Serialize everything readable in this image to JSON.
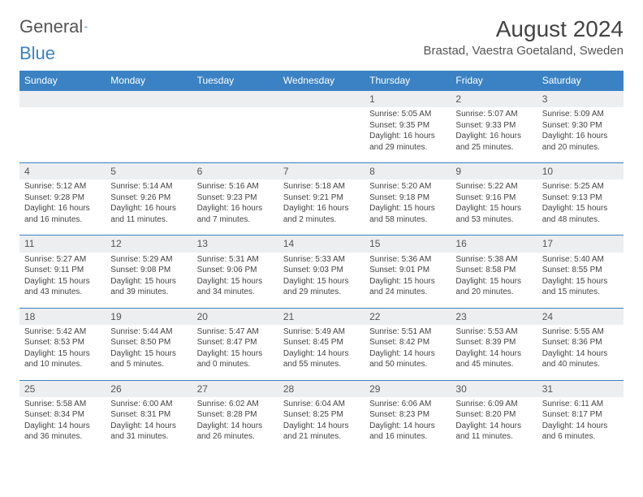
{
  "logo": {
    "word1": "General",
    "word2": "Blue"
  },
  "title": "August 2024",
  "location": "Brastad, Vaestra Goetaland, Sweden",
  "colors": {
    "header_bg": "#3b82c4",
    "header_text": "#ffffff",
    "daynum_bg": "#eceef0",
    "rule": "#3b82c4",
    "text": "#444444",
    "page_bg": "#ffffff"
  },
  "day_headers": [
    "Sunday",
    "Monday",
    "Tuesday",
    "Wednesday",
    "Thursday",
    "Friday",
    "Saturday"
  ],
  "weeks": [
    [
      null,
      null,
      null,
      null,
      {
        "n": "1",
        "sr": "5:05 AM",
        "ss": "9:35 PM",
        "dl": "16 hours and 29 minutes."
      },
      {
        "n": "2",
        "sr": "5:07 AM",
        "ss": "9:33 PM",
        "dl": "16 hours and 25 minutes."
      },
      {
        "n": "3",
        "sr": "5:09 AM",
        "ss": "9:30 PM",
        "dl": "16 hours and 20 minutes."
      }
    ],
    [
      {
        "n": "4",
        "sr": "5:12 AM",
        "ss": "9:28 PM",
        "dl": "16 hours and 16 minutes."
      },
      {
        "n": "5",
        "sr": "5:14 AM",
        "ss": "9:26 PM",
        "dl": "16 hours and 11 minutes."
      },
      {
        "n": "6",
        "sr": "5:16 AM",
        "ss": "9:23 PM",
        "dl": "16 hours and 7 minutes."
      },
      {
        "n": "7",
        "sr": "5:18 AM",
        "ss": "9:21 PM",
        "dl": "16 hours and 2 minutes."
      },
      {
        "n": "8",
        "sr": "5:20 AM",
        "ss": "9:18 PM",
        "dl": "15 hours and 58 minutes."
      },
      {
        "n": "9",
        "sr": "5:22 AM",
        "ss": "9:16 PM",
        "dl": "15 hours and 53 minutes."
      },
      {
        "n": "10",
        "sr": "5:25 AM",
        "ss": "9:13 PM",
        "dl": "15 hours and 48 minutes."
      }
    ],
    [
      {
        "n": "11",
        "sr": "5:27 AM",
        "ss": "9:11 PM",
        "dl": "15 hours and 43 minutes."
      },
      {
        "n": "12",
        "sr": "5:29 AM",
        "ss": "9:08 PM",
        "dl": "15 hours and 39 minutes."
      },
      {
        "n": "13",
        "sr": "5:31 AM",
        "ss": "9:06 PM",
        "dl": "15 hours and 34 minutes."
      },
      {
        "n": "14",
        "sr": "5:33 AM",
        "ss": "9:03 PM",
        "dl": "15 hours and 29 minutes."
      },
      {
        "n": "15",
        "sr": "5:36 AM",
        "ss": "9:01 PM",
        "dl": "15 hours and 24 minutes."
      },
      {
        "n": "16",
        "sr": "5:38 AM",
        "ss": "8:58 PM",
        "dl": "15 hours and 20 minutes."
      },
      {
        "n": "17",
        "sr": "5:40 AM",
        "ss": "8:55 PM",
        "dl": "15 hours and 15 minutes."
      }
    ],
    [
      {
        "n": "18",
        "sr": "5:42 AM",
        "ss": "8:53 PM",
        "dl": "15 hours and 10 minutes."
      },
      {
        "n": "19",
        "sr": "5:44 AM",
        "ss": "8:50 PM",
        "dl": "15 hours and 5 minutes."
      },
      {
        "n": "20",
        "sr": "5:47 AM",
        "ss": "8:47 PM",
        "dl": "15 hours and 0 minutes."
      },
      {
        "n": "21",
        "sr": "5:49 AM",
        "ss": "8:45 PM",
        "dl": "14 hours and 55 minutes."
      },
      {
        "n": "22",
        "sr": "5:51 AM",
        "ss": "8:42 PM",
        "dl": "14 hours and 50 minutes."
      },
      {
        "n": "23",
        "sr": "5:53 AM",
        "ss": "8:39 PM",
        "dl": "14 hours and 45 minutes."
      },
      {
        "n": "24",
        "sr": "5:55 AM",
        "ss": "8:36 PM",
        "dl": "14 hours and 40 minutes."
      }
    ],
    [
      {
        "n": "25",
        "sr": "5:58 AM",
        "ss": "8:34 PM",
        "dl": "14 hours and 36 minutes."
      },
      {
        "n": "26",
        "sr": "6:00 AM",
        "ss": "8:31 PM",
        "dl": "14 hours and 31 minutes."
      },
      {
        "n": "27",
        "sr": "6:02 AM",
        "ss": "8:28 PM",
        "dl": "14 hours and 26 minutes."
      },
      {
        "n": "28",
        "sr": "6:04 AM",
        "ss": "8:25 PM",
        "dl": "14 hours and 21 minutes."
      },
      {
        "n": "29",
        "sr": "6:06 AM",
        "ss": "8:23 PM",
        "dl": "14 hours and 16 minutes."
      },
      {
        "n": "30",
        "sr": "6:09 AM",
        "ss": "8:20 PM",
        "dl": "14 hours and 11 minutes."
      },
      {
        "n": "31",
        "sr": "6:11 AM",
        "ss": "8:17 PM",
        "dl": "14 hours and 6 minutes."
      }
    ]
  ],
  "labels": {
    "sunrise": "Sunrise: ",
    "sunset": "Sunset: ",
    "daylight": "Daylight: "
  }
}
